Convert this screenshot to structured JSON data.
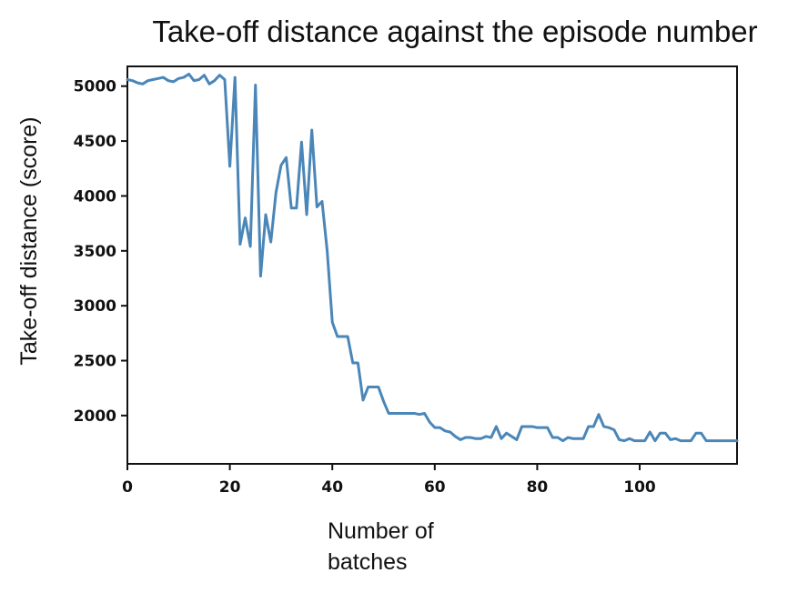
{
  "chart_data": {
    "type": "line",
    "title": "Take-off distance against the episode number",
    "xlabel_lines": [
      "Number of",
      "batches"
    ],
    "ylabel": "Take-off distance (score)",
    "xlim": [
      0,
      119
    ],
    "ylim": [
      1560,
      5180
    ],
    "x_ticks": [
      0,
      20,
      40,
      60,
      80,
      100
    ],
    "y_ticks": [
      2000,
      2500,
      3000,
      3500,
      4000,
      4500,
      5000
    ],
    "x_tick_labels": [
      "0",
      "20",
      "40",
      "60",
      "80",
      "100"
    ],
    "y_tick_labels": [
      "2000",
      "2500",
      "3000",
      "3500",
      "4000",
      "4500",
      "5000"
    ],
    "grid": false,
    "series": [
      {
        "color": "#4a86b8",
        "x": [
          0,
          1,
          2,
          3,
          4,
          5,
          6,
          7,
          8,
          9,
          10,
          11,
          12,
          13,
          14,
          15,
          16,
          17,
          18,
          19,
          20,
          21,
          22,
          23,
          24,
          25,
          26,
          27,
          28,
          29,
          30,
          31,
          32,
          33,
          34,
          35,
          36,
          37,
          38,
          39,
          40,
          41,
          42,
          43,
          44,
          45,
          46,
          47,
          48,
          49,
          50,
          51,
          52,
          53,
          54,
          55,
          56,
          57,
          58,
          59,
          60,
          61,
          62,
          63,
          64,
          65,
          66,
          67,
          68,
          69,
          70,
          71,
          72,
          73,
          74,
          75,
          76,
          77,
          78,
          79,
          80,
          81,
          82,
          83,
          84,
          85,
          86,
          87,
          88,
          89,
          90,
          91,
          92,
          93,
          94,
          95,
          96,
          97,
          98,
          99,
          100,
          101,
          102,
          103,
          104,
          105,
          106,
          107,
          108,
          109,
          110,
          111,
          112,
          113,
          114,
          115,
          116,
          117,
          118,
          119
        ],
        "y": [
          5060,
          5050,
          5030,
          5020,
          5050,
          5060,
          5070,
          5080,
          5050,
          5040,
          5070,
          5080,
          5110,
          5050,
          5060,
          5100,
          5020,
          5050,
          5100,
          5060,
          4270,
          5080,
          3560,
          3800,
          3540,
          5010,
          3270,
          3830,
          3580,
          4030,
          4280,
          4350,
          3890,
          3890,
          4490,
          3830,
          4600,
          3900,
          3950,
          3500,
          2850,
          2720,
          2720,
          2720,
          2480,
          2480,
          2140,
          2260,
          2260,
          2260,
          2130,
          2020,
          2020,
          2020,
          2020,
          2020,
          2020,
          2010,
          2020,
          1940,
          1890,
          1890,
          1860,
          1850,
          1810,
          1780,
          1800,
          1800,
          1790,
          1790,
          1810,
          1800,
          1900,
          1790,
          1840,
          1810,
          1780,
          1900,
          1900,
          1900,
          1890,
          1890,
          1890,
          1800,
          1800,
          1770,
          1800,
          1790,
          1790,
          1790,
          1900,
          1900,
          2010,
          1900,
          1890,
          1870,
          1780,
          1770,
          1790,
          1770,
          1770,
          1770,
          1850,
          1770,
          1840,
          1840,
          1780,
          1790,
          1770,
          1770,
          1770,
          1840,
          1840,
          1770,
          1770,
          1770,
          1770,
          1770,
          1770,
          1770
        ]
      }
    ]
  }
}
